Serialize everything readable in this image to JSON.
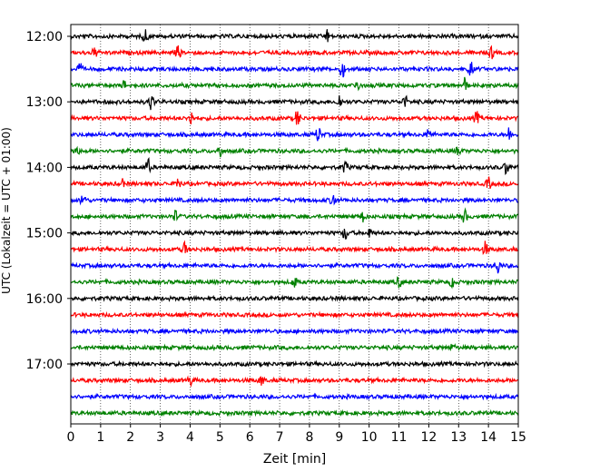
{
  "chart_data": {
    "type": "line",
    "subtype": "helicorder",
    "xlabel": "Zeit  [min]",
    "ylabel": "UTC (Lokalzeit = UTC + 01:00)",
    "xlim": [
      0,
      15
    ],
    "x_ticks": [
      "0",
      "1",
      "2",
      "3",
      "4",
      "5",
      "6",
      "7",
      "8",
      "9",
      "10",
      "11",
      "12",
      "13",
      "14",
      "15"
    ],
    "y_tick_labels": [
      "12:00",
      "13:00",
      "14:00",
      "15:00",
      "16:00",
      "17:00"
    ],
    "vertical_grid": "dotted",
    "trace_interval_minutes": 15,
    "trace_colors": [
      "#000000",
      "#ff0000",
      "#0000ff",
      "#008000"
    ],
    "series": [
      {
        "start": "12:00",
        "color": "#000000",
        "events": [
          [
            2.5,
            0.55
          ],
          [
            8.6,
            0.5
          ]
        ]
      },
      {
        "start": "12:15",
        "color": "#ff0000",
        "events": [
          [
            0.8,
            0.45
          ],
          [
            3.6,
            0.6
          ],
          [
            14.1,
            0.5
          ]
        ]
      },
      {
        "start": "12:30",
        "color": "#0000ff",
        "events": [
          [
            0.3,
            0.45
          ],
          [
            9.1,
            0.7
          ],
          [
            13.4,
            0.6
          ]
        ]
      },
      {
        "start": "12:45",
        "color": "#008000",
        "events": [
          [
            1.8,
            0.35
          ],
          [
            9.6,
            0.5
          ],
          [
            13.2,
            0.6
          ]
        ]
      },
      {
        "start": "13:00",
        "color": "#000000",
        "events": [
          [
            2.7,
            0.75
          ],
          [
            9.0,
            0.6
          ],
          [
            11.2,
            0.5
          ]
        ]
      },
      {
        "start": "13:15",
        "color": "#ff0000",
        "events": [
          [
            4.0,
            0.85
          ],
          [
            7.6,
            0.8
          ],
          [
            13.6,
            0.55
          ]
        ]
      },
      {
        "start": "13:30",
        "color": "#0000ff",
        "events": [
          [
            8.3,
            0.7
          ],
          [
            12.0,
            0.5
          ],
          [
            14.7,
            0.6
          ]
        ]
      },
      {
        "start": "13:45",
        "color": "#008000",
        "events": [
          [
            0.2,
            0.4
          ],
          [
            5.0,
            0.6
          ],
          [
            13.0,
            0.45
          ]
        ]
      },
      {
        "start": "14:00",
        "color": "#000000",
        "events": [
          [
            2.6,
            0.65
          ],
          [
            9.2,
            0.5
          ],
          [
            14.6,
            0.6
          ]
        ]
      },
      {
        "start": "14:15",
        "color": "#ff0000",
        "events": [
          [
            1.7,
            0.4
          ],
          [
            3.6,
            0.6
          ],
          [
            14.0,
            0.5
          ]
        ]
      },
      {
        "start": "14:30",
        "color": "#0000ff",
        "events": [
          [
            0.4,
            0.6
          ],
          [
            8.8,
            0.65
          ]
        ]
      },
      {
        "start": "14:45",
        "color": "#008000",
        "events": [
          [
            3.5,
            0.45
          ],
          [
            9.8,
            0.4
          ],
          [
            13.2,
            0.6
          ]
        ]
      },
      {
        "start": "15:00",
        "color": "#000000",
        "events": [
          [
            9.2,
            0.6
          ],
          [
            10.0,
            0.45
          ]
        ]
      },
      {
        "start": "15:15",
        "color": "#ff0000",
        "events": [
          [
            3.8,
            0.65
          ],
          [
            13.9,
            0.6
          ]
        ]
      },
      {
        "start": "15:30",
        "color": "#0000ff",
        "events": [
          [
            14.3,
            0.7
          ]
        ]
      },
      {
        "start": "15:45",
        "color": "#008000",
        "events": [
          [
            7.5,
            0.45
          ],
          [
            11.0,
            0.45
          ],
          [
            12.8,
            0.5
          ]
        ]
      },
      {
        "start": "16:00",
        "color": "#000000",
        "events": []
      },
      {
        "start": "16:15",
        "color": "#ff0000",
        "events": []
      },
      {
        "start": "16:30",
        "color": "#0000ff",
        "events": []
      },
      {
        "start": "16:45",
        "color": "#008000",
        "events": [
          [
            12.8,
            0.3
          ]
        ]
      },
      {
        "start": "17:00",
        "color": "#000000",
        "events": []
      },
      {
        "start": "17:15",
        "color": "#ff0000",
        "events": [
          [
            4.0,
            0.4
          ],
          [
            6.4,
            0.45
          ]
        ]
      },
      {
        "start": "17:30",
        "color": "#0000ff",
        "events": []
      },
      {
        "start": "17:45",
        "color": "#008000",
        "events": []
      }
    ]
  }
}
